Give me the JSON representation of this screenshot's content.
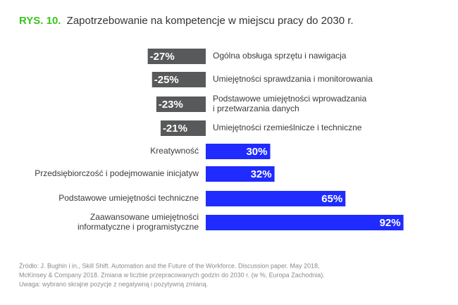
{
  "chart_data": {
    "type": "diverging-bar",
    "figure_label": "RYS. 10.",
    "title": "Zapotrzebowanie na kompetencje w miejscu pracy do 2030 r.",
    "categories": [
      "Ogólna obsługa sprzętu i nawigacja",
      "Umiejętności sprawdzania i monitorowania",
      "Podstawowe umiejętności wprowadzania\ni przetwarzania danych",
      "Umiejętności rzemieślnicze i techniczne",
      "Kreatywność",
      "Przedsiębiorczość i podejmowanie inicjatyw",
      "Podstawowe umiejętności techniczne",
      "Zaawansowane umiejętności\ninformatyczne i programistyczne"
    ],
    "values": [
      -27,
      -25,
      -23,
      -21,
      30,
      32,
      65,
      92
    ],
    "value_labels": [
      "-27%",
      "-25%",
      "-23%",
      "-21%",
      "30%",
      "32%",
      "65%",
      "92%"
    ],
    "colors": [
      "#58595b",
      "#58595b",
      "#58595b",
      "#58595b",
      "#1f2bff",
      "#1f2bff",
      "#1f2bff",
      "#1f2bff"
    ],
    "figure_label_color": "#3cc41e",
    "source": [
      "Źródło: J. Bughin i in., Skill Shift. Automation and the Future of the Workforce. Discussion paper. May 2018,",
      "McKinsey & Company 2018. Zmiana w liczbie przepracowanych godzin do 2030 r. (w %, Europa Zachodnia).",
      "Uwaga: wybrano skrajne pozycje z negatywną i pozytywną zmianą."
    ]
  }
}
